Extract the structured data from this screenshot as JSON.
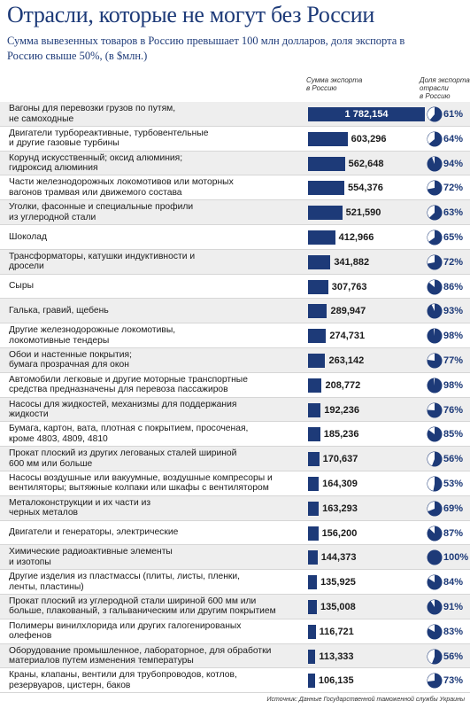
{
  "chart_data": {
    "type": "bar",
    "orientation": "horizontal",
    "title": "Отрасли, которые не могут без России",
    "subtitle": "Сумма вывезенных товаров в Россию превышает 100 млн долларов, доля экспорта в Россию свыше 50%, (в $млн.)",
    "categories": [
      "Вагоны для перевозки грузов по путям,\nне самоходные",
      "Двигатели турбореактивные, турбовентельные\nи другие газовые турбины",
      "Корунд искусственный; оксид алюминия;\nгидроксид алюминия",
      "Части железнодорожных локомотивов или моторных\nвагонов трамвая или движемого состава",
      "Уголки, фасонные и специальные профили\nиз углеродной стали",
      "Шоколад",
      "Трансформаторы, катушки индуктивности и\nдросели",
      "Сыры",
      "Галька, гравий, щебень",
      "Другие железнодорожные локомотивы,\nлокомотивные тендеры",
      "Обои и настенные покрытия;\nбумага прозрачная для окон",
      "Автомобили легковые и другие моторные транспортные\nсредства предназначены для перевоза пассажиров",
      "Насосы для жидкостей, механизмы для поддержания\nжидкости",
      "Бумага, картон, вата, плотная с покрытием, просоченая,\nкроме 4803, 4809, 4810",
      "Прокат плоский из других легованых сталей шириной\n600 мм или больше",
      "Насосы  воздушные или вакуумные, воздушные компресоры и\nвентиляторы; вытяжные колпаки или шкафы с вентилятором",
      "Металоконструкции и их части из\nчерных металов",
      "Двигатели и генераторы, электрические",
      "Химические радиоактивные элементы\nи изотопы",
      "Другие изделия из пластмассы (плиты, листы, пленки,\nленты, пластины)",
      "Прокат плоский из углеродной стали шириной 600 мм или\nбольше, плакованый, з гальваническим или другим покрытием",
      "Полимеры винилхлорида или других галогенированых\nолефенов",
      "Оборудование промышленное, лабораторное, для обработки\nматериалов путем изменения температуры",
      "Краны, клапаны, вентили для трубопроводов, котлов,\nрезервуаров, цистерн, баков"
    ],
    "series": [
      {
        "name": "Сумма экспорта\nв Россию",
        "color": "#1d3a78",
        "values": [
          1782.154,
          603.296,
          562.648,
          554.376,
          521.59,
          412.966,
          341.882,
          307.763,
          289.947,
          274.731,
          263.142,
          208.772,
          192.236,
          185.236,
          170.637,
          164.309,
          163.293,
          156.2,
          144.373,
          135.925,
          135.008,
          116.721,
          113.333,
          106.135
        ],
        "value_labels": [
          "1 782,154",
          "603,296",
          "562,648",
          "554,376",
          "521,590",
          "412,966",
          "341,882",
          "307,763",
          "289,947",
          "274,731",
          "263,142",
          "208,772",
          "192,236",
          "185,236",
          "170,637",
          "164,309",
          "163,293",
          "156,200",
          "144,373",
          "135,925",
          "135,008",
          "116,721",
          "113,333",
          "106,135"
        ]
      },
      {
        "name": "Доля экспорта\nотрасли\nв Россию",
        "color": "#1d3a78",
        "values": [
          61,
          64,
          94,
          72,
          63,
          65,
          72,
          86,
          93,
          98,
          77,
          98,
          76,
          85,
          56,
          53,
          69,
          87,
          100,
          84,
          91,
          83,
          56,
          73
        ],
        "value_labels": [
          "61%",
          "64%",
          "94%",
          "72%",
          "63%",
          "65%",
          "72%",
          "86%",
          "93%",
          "98%",
          "77%",
          "98%",
          "76%",
          "85%",
          "56%",
          "53%",
          "69%",
          "87%",
          "100%",
          "84%",
          "91%",
          "83%",
          "56%",
          "73%"
        ]
      }
    ],
    "source": "Источник: Данные Государственной таможенной службы Украины"
  }
}
